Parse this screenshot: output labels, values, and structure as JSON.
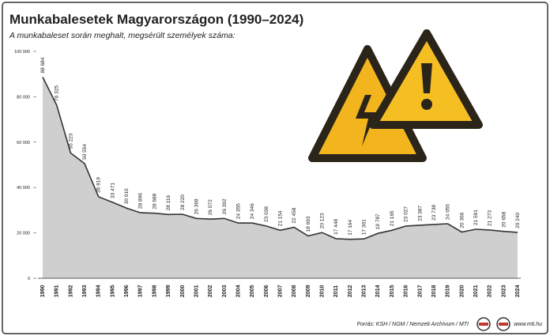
{
  "chart_data": {
    "type": "area",
    "title": "Munkabalesetek Magyarországon (1990–2024)",
    "subtitle": "A munkabaleset során meghalt, megsérült személyek száma:",
    "source": "Forrás: KSH / NGM / Nemzeti Archívum / MTI",
    "website": "www.mti.hu",
    "categories": [
      "1990",
      "1991",
      "1992",
      "1993",
      "1994",
      "1995",
      "1996",
      "1997",
      "1998",
      "1999",
      "2000",
      "2001",
      "2002",
      "2003",
      "2004",
      "2005",
      "2006",
      "2007",
      "2008",
      "2009",
      "2010",
      "2011",
      "2012",
      "2013",
      "2014",
      "2015",
      "2016",
      "2017",
      "2018",
      "2019",
      "2020",
      "2021",
      "2022",
      "2023",
      "2024"
    ],
    "values": [
      88684,
      76325,
      55223,
      50554,
      35919,
      33471,
      30910,
      28896,
      28688,
      28116,
      28220,
      26369,
      26072,
      26392,
      24355,
      24346,
      23038,
      21154,
      22458,
      18693,
      20123,
      17448,
      17164,
      17361,
      19787,
      21165,
      23027,
      23387,
      23738,
      24055,
      20366,
      21591,
      21273,
      20658,
      20240
    ],
    "value_labels": [
      "88 684",
      "76 325",
      "55 223",
      "50 554",
      "35 919",
      "33 471",
      "30 910",
      "28 896",
      "28 688",
      "28 116",
      "28 220",
      "26 369",
      "26 072",
      "26 392",
      "24 355",
      "24 346",
      "23 038",
      "21 154",
      "22 458",
      "18 693",
      "20 123",
      "17 448",
      "17 164",
      "17 361",
      "19 787",
      "21 165",
      "23 027",
      "23 387",
      "23 738",
      "24 055",
      "20 366",
      "21 591",
      "21 273",
      "20 658",
      "20 240"
    ],
    "color": "#cfcfcf",
    "line_color": "#333333",
    "ylim": [
      0,
      100000
    ],
    "yticks": [
      0,
      {
        "value": 20000,
        "label": "20 000"
      },
      {
        "value": 40000,
        "label": "40 000"
      },
      {
        "value": 60000,
        "label": "60 000"
      },
      {
        "value": 80000,
        "label": "80 000"
      },
      {
        "value": 100000,
        "label": "100 000"
      }
    ],
    "grid": false
  }
}
